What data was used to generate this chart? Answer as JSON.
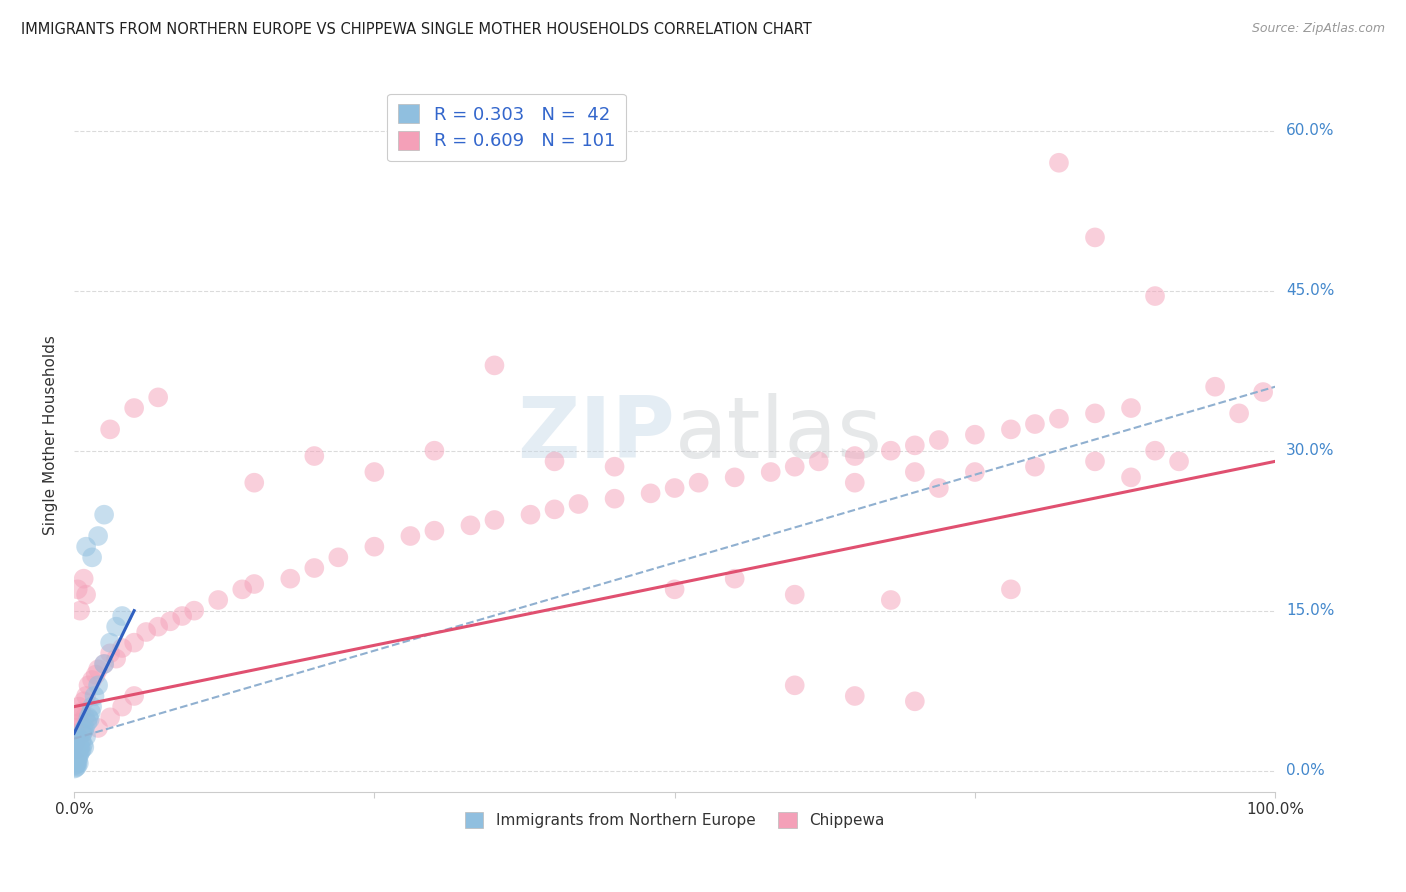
{
  "title": "IMMIGRANTS FROM NORTHERN EUROPE VS CHIPPEWA SINGLE MOTHER HOUSEHOLDS CORRELATION CHART",
  "source": "Source: ZipAtlas.com",
  "ylabel": "Single Mother Households",
  "yticks": [
    "0.0%",
    "15.0%",
    "30.0%",
    "45.0%",
    "60.0%"
  ],
  "ytick_vals": [
    0,
    15,
    30,
    45,
    60
  ],
  "xlim": [
    0,
    100
  ],
  "ylim": [
    -2,
    65
  ],
  "watermark_text": "ZIPatlas",
  "blue_scatter": [
    [
      0.05,
      0.2
    ],
    [
      0.08,
      0.5
    ],
    [
      0.1,
      0.8
    ],
    [
      0.12,
      1.2
    ],
    [
      0.15,
      0.3
    ],
    [
      0.18,
      0.6
    ],
    [
      0.2,
      1.5
    ],
    [
      0.22,
      2.0
    ],
    [
      0.25,
      0.4
    ],
    [
      0.28,
      1.0
    ],
    [
      0.3,
      0.8
    ],
    [
      0.32,
      1.8
    ],
    [
      0.35,
      2.5
    ],
    [
      0.38,
      1.3
    ],
    [
      0.4,
      0.7
    ],
    [
      0.42,
      3.0
    ],
    [
      0.45,
      1.6
    ],
    [
      0.5,
      2.2
    ],
    [
      0.55,
      1.8
    ],
    [
      0.6,
      2.8
    ],
    [
      0.65,
      2.0
    ],
    [
      0.7,
      3.5
    ],
    [
      0.75,
      2.5
    ],
    [
      0.8,
      3.8
    ],
    [
      0.85,
      2.2
    ],
    [
      0.9,
      4.0
    ],
    [
      1.0,
      3.2
    ],
    [
      1.1,
      4.5
    ],
    [
      1.2,
      5.0
    ],
    [
      1.3,
      4.8
    ],
    [
      1.4,
      5.5
    ],
    [
      1.5,
      6.0
    ],
    [
      1.7,
      7.0
    ],
    [
      2.0,
      8.0
    ],
    [
      2.5,
      10.0
    ],
    [
      3.0,
      12.0
    ],
    [
      3.5,
      13.5
    ],
    [
      4.0,
      14.5
    ],
    [
      1.0,
      21.0
    ],
    [
      1.5,
      20.0
    ],
    [
      2.0,
      22.0
    ],
    [
      2.5,
      24.0
    ]
  ],
  "pink_scatter": [
    [
      0.05,
      2.5
    ],
    [
      0.1,
      1.0
    ],
    [
      0.15,
      3.5
    ],
    [
      0.2,
      4.0
    ],
    [
      0.25,
      2.0
    ],
    [
      0.3,
      5.0
    ],
    [
      0.35,
      3.0
    ],
    [
      0.4,
      6.0
    ],
    [
      0.5,
      4.5
    ],
    [
      0.6,
      5.5
    ],
    [
      0.7,
      3.5
    ],
    [
      0.8,
      6.5
    ],
    [
      0.9,
      5.0
    ],
    [
      1.0,
      7.0
    ],
    [
      1.2,
      8.0
    ],
    [
      1.5,
      8.5
    ],
    [
      1.8,
      9.0
    ],
    [
      2.0,
      9.5
    ],
    [
      2.5,
      10.0
    ],
    [
      3.0,
      11.0
    ],
    [
      3.5,
      10.5
    ],
    [
      4.0,
      11.5
    ],
    [
      5.0,
      12.0
    ],
    [
      6.0,
      13.0
    ],
    [
      7.0,
      13.5
    ],
    [
      8.0,
      14.0
    ],
    [
      9.0,
      14.5
    ],
    [
      10.0,
      15.0
    ],
    [
      12.0,
      16.0
    ],
    [
      14.0,
      17.0
    ],
    [
      15.0,
      17.5
    ],
    [
      18.0,
      18.0
    ],
    [
      20.0,
      19.0
    ],
    [
      22.0,
      20.0
    ],
    [
      25.0,
      21.0
    ],
    [
      28.0,
      22.0
    ],
    [
      30.0,
      22.5
    ],
    [
      33.0,
      23.0
    ],
    [
      35.0,
      23.5
    ],
    [
      38.0,
      24.0
    ],
    [
      40.0,
      24.5
    ],
    [
      42.0,
      25.0
    ],
    [
      45.0,
      25.5
    ],
    [
      48.0,
      26.0
    ],
    [
      50.0,
      26.5
    ],
    [
      52.0,
      27.0
    ],
    [
      55.0,
      27.5
    ],
    [
      58.0,
      28.0
    ],
    [
      60.0,
      28.5
    ],
    [
      62.0,
      29.0
    ],
    [
      65.0,
      29.5
    ],
    [
      68.0,
      30.0
    ],
    [
      70.0,
      30.5
    ],
    [
      72.0,
      31.0
    ],
    [
      75.0,
      31.5
    ],
    [
      78.0,
      32.0
    ],
    [
      80.0,
      32.5
    ],
    [
      82.0,
      33.0
    ],
    [
      85.0,
      33.5
    ],
    [
      88.0,
      34.0
    ],
    [
      3.0,
      32.0
    ],
    [
      5.0,
      34.0
    ],
    [
      7.0,
      35.0
    ],
    [
      15.0,
      27.0
    ],
    [
      20.0,
      29.5
    ],
    [
      25.0,
      28.0
    ],
    [
      30.0,
      30.0
    ],
    [
      35.0,
      38.0
    ],
    [
      40.0,
      29.0
    ],
    [
      45.0,
      28.5
    ],
    [
      50.0,
      17.0
    ],
    [
      55.0,
      18.0
    ],
    [
      60.0,
      16.5
    ],
    [
      65.0,
      27.0
    ],
    [
      68.0,
      16.0
    ],
    [
      70.0,
      28.0
    ],
    [
      72.0,
      26.5
    ],
    [
      75.0,
      28.0
    ],
    [
      78.0,
      17.0
    ],
    [
      80.0,
      28.5
    ],
    [
      85.0,
      29.0
    ],
    [
      88.0,
      27.5
    ],
    [
      90.0,
      30.0
    ],
    [
      92.0,
      29.0
    ],
    [
      95.0,
      36.0
    ],
    [
      97.0,
      33.5
    ],
    [
      99.0,
      35.5
    ],
    [
      90.0,
      44.5
    ],
    [
      85.0,
      50.0
    ],
    [
      82.0,
      57.0
    ],
    [
      60.0,
      8.0
    ],
    [
      65.0,
      7.0
    ],
    [
      70.0,
      6.5
    ],
    [
      0.3,
      17.0
    ],
    [
      0.5,
      15.0
    ],
    [
      0.8,
      18.0
    ],
    [
      1.0,
      16.5
    ],
    [
      2.0,
      4.0
    ],
    [
      3.0,
      5.0
    ],
    [
      4.0,
      6.0
    ],
    [
      5.0,
      7.0
    ]
  ],
  "blue_line_x": [
    0,
    5.0
  ],
  "blue_line_y": [
    3.5,
    15.0
  ],
  "pink_line_x": [
    0,
    100
  ],
  "pink_line_y": [
    6.0,
    29.0
  ],
  "dashed_line_x": [
    0,
    100
  ],
  "dashed_line_y": [
    3.0,
    36.0
  ],
  "blue_dot_color": "#90bfdf",
  "pink_dot_color": "#f4a0b8",
  "blue_line_color": "#3060c0",
  "pink_line_color": "#e05070",
  "dashed_line_color": "#90b0d0",
  "grid_color": "#cccccc",
  "ytick_color": "#4488cc",
  "xtick_color": "#333333",
  "background": "#ffffff"
}
